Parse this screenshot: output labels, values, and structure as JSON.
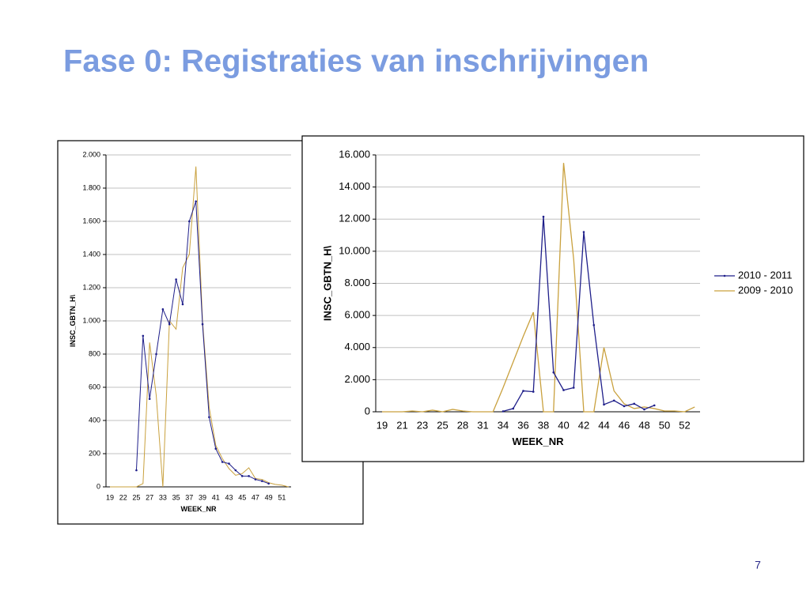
{
  "title": "Fase 0: Registraties van inschrijvingen",
  "page_number": "7",
  "chart_data": [
    {
      "type": "line",
      "x_label": "WEEK_NR",
      "y_label": "INSC_GBTN_H\\",
      "categories": [
        "19",
        null,
        "22",
        null,
        "25",
        null,
        "27",
        null,
        "33",
        null,
        "35",
        null,
        "37",
        null,
        "39",
        null,
        "41",
        null,
        "43",
        null,
        "45",
        null,
        "47",
        null,
        "49",
        null,
        "51",
        null
      ],
      "ylim": [
        0,
        2000
      ],
      "yticks": [
        0,
        200,
        400,
        600,
        800,
        {
          "value": 1000,
          "label": "1.000"
        },
        {
          "value": 1200,
          "label": "1.200"
        },
        {
          "value": 1400,
          "label": "1.400"
        },
        {
          "value": 1600,
          "label": "1.600"
        },
        {
          "value": 1800,
          "label": "1.800"
        },
        {
          "value": 2000,
          "label": "2.000"
        }
      ],
      "grid": true,
      "series": [
        {
          "name": "2010 - 2011",
          "color": "#1f1f8a",
          "markers": true,
          "values": [
            null,
            null,
            null,
            null,
            100,
            910,
            530,
            800,
            1070,
            980,
            1250,
            1100,
            1600,
            1720,
            980,
            420,
            230,
            150,
            140,
            100,
            65,
            65,
            45,
            35,
            20,
            null,
            null,
            null
          ]
        },
        {
          "name": "2009 - 2010",
          "color": "#c9a13e",
          "markers": false,
          "values": [
            0,
            0,
            0,
            0,
            0,
            20,
            870,
            550,
            0,
            1000,
            950,
            1320,
            1400,
            1930,
            1000,
            480,
            250,
            170,
            110,
            70,
            80,
            115,
            50,
            45,
            25,
            15,
            10,
            0
          ]
        }
      ]
    },
    {
      "type": "line",
      "x_label": "WEEK_NR",
      "y_label": "INSC_GBTN_H\\",
      "categories": [
        "19",
        null,
        "21",
        null,
        "23",
        null,
        "25",
        null,
        "28",
        null,
        "31",
        null,
        "34",
        null,
        "36",
        null,
        "38",
        null,
        "40",
        null,
        "42",
        null,
        "44",
        null,
        "46",
        null,
        "48",
        null,
        "50",
        null,
        "52",
        null
      ],
      "ylim": [
        0,
        16000
      ],
      "yticks": [
        0,
        {
          "value": 2000,
          "label": "2.000"
        },
        {
          "value": 4000,
          "label": "4.000"
        },
        {
          "value": 6000,
          "label": "6.000"
        },
        {
          "value": 8000,
          "label": "8.000"
        },
        {
          "value": 10000,
          "label": "10.000"
        },
        {
          "value": 12000,
          "label": "12.000"
        },
        {
          "value": 14000,
          "label": "14.000"
        },
        {
          "value": 16000,
          "label": "16.000"
        }
      ],
      "grid": true,
      "legend": "right",
      "series": [
        {
          "name": "2010 - 2011",
          "color": "#1f1f8a",
          "markers": true,
          "values": [
            null,
            null,
            null,
            null,
            null,
            null,
            null,
            null,
            null,
            null,
            null,
            null,
            30,
            200,
            1300,
            1250,
            12150,
            2450,
            1350,
            1500,
            11200,
            5400,
            450,
            700,
            350,
            500,
            150,
            400,
            null,
            null,
            null,
            null
          ]
        },
        {
          "name": "2009 - 2010",
          "color": "#c9a13e",
          "markers": false,
          "values": [
            0,
            0,
            0,
            50,
            0,
            100,
            0,
            150,
            50,
            0,
            0,
            0,
            1500,
            3100,
            4700,
            6200,
            0,
            0,
            15500,
            9500,
            0,
            0,
            4000,
            1300,
            500,
            200,
            300,
            200,
            50,
            50,
            0,
            300
          ]
        }
      ]
    }
  ]
}
